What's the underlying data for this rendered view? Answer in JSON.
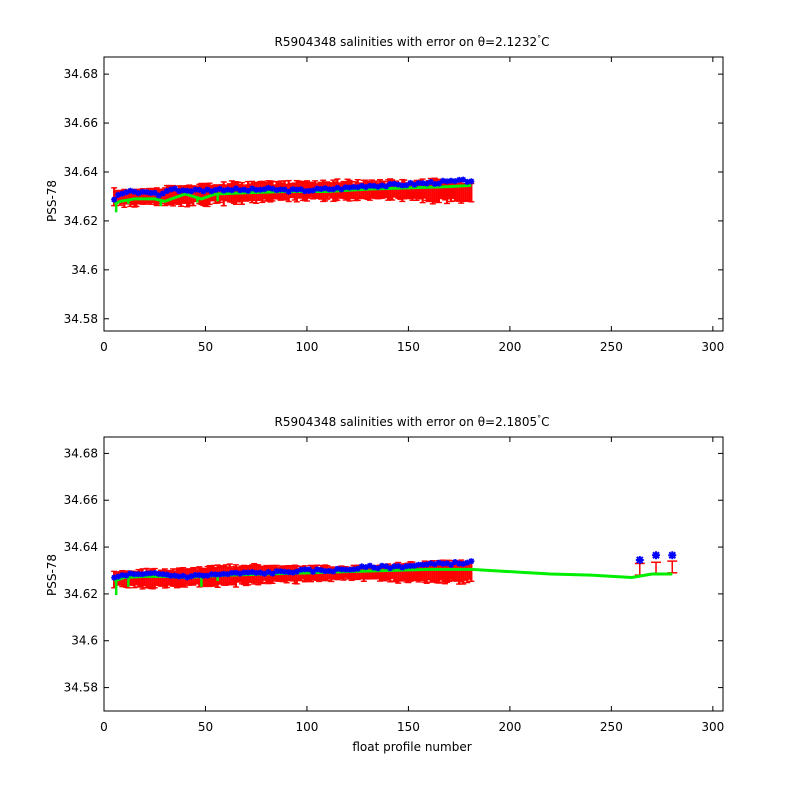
{
  "colors": {
    "error_bar": "#ff0000",
    "mapped": "#00ee00",
    "measured": "#0000ff"
  },
  "chart_data": [
    {
      "type": "line",
      "title_prefix": "R5904348 salinities with error on ",
      "title_theta": "θ=2.1232",
      "title_unit": "C",
      "ylabel": "PSS-78",
      "xlabel": "",
      "xlim": [
        0,
        305
      ],
      "ylim": [
        34.575,
        34.687
      ],
      "xticks": [
        "0",
        "50",
        "100",
        "150",
        "200",
        "250",
        "300"
      ],
      "yticks": [
        "34.58",
        "34.6",
        "34.62",
        "34.64",
        "34.66",
        "34.68"
      ],
      "series": [
        {
          "role": "error",
          "x": [
            5,
            20,
            40,
            60,
            80,
            100,
            120,
            140,
            160,
            181
          ],
          "y": [
            34.6295,
            34.6298,
            34.6305,
            34.6315,
            34.632,
            34.6325,
            34.6325,
            34.6328,
            34.6323,
            34.632
          ],
          "err": [
            0.003,
            0.003,
            0.0035,
            0.004,
            0.0035,
            0.0035,
            0.0035,
            0.0035,
            0.004,
            0.004
          ]
        },
        {
          "role": "mapped",
          "x": [
            5,
            8,
            15,
            25,
            30,
            40,
            48,
            55,
            70,
            90,
            110,
            130,
            150,
            170,
            181
          ],
          "y": [
            34.627,
            34.628,
            34.629,
            34.629,
            34.628,
            34.631,
            34.629,
            34.631,
            34.6315,
            34.632,
            34.632,
            34.633,
            34.6335,
            34.634,
            34.6345
          ],
          "spikes": [
            [
              6,
              34.6235
            ],
            [
              12,
              34.627
            ],
            [
              28,
              34.626
            ],
            [
              46,
              34.6275
            ],
            [
              56,
              34.628
            ]
          ]
        },
        {
          "role": "measured",
          "x": [
            5,
            8,
            12,
            18,
            22,
            28,
            32,
            40,
            50,
            60,
            70,
            80,
            90,
            100,
            110,
            120,
            130,
            140,
            150,
            160,
            170,
            181
          ],
          "y": [
            34.629,
            34.631,
            34.632,
            34.6315,
            34.632,
            34.6305,
            34.633,
            34.6325,
            34.6325,
            34.633,
            34.6325,
            34.633,
            34.6325,
            34.6325,
            34.633,
            34.6335,
            34.6345,
            34.6345,
            34.635,
            34.6355,
            34.636,
            34.6365
          ]
        }
      ]
    },
    {
      "type": "line",
      "title_prefix": "R5904348 salinities with error on ",
      "title_theta": "θ=2.1805",
      "title_unit": "C",
      "ylabel": "PSS-78",
      "xlabel": "float profile number",
      "xlim": [
        0,
        305
      ],
      "ylim": [
        34.57,
        34.687
      ],
      "xticks": [
        "0",
        "50",
        "100",
        "150",
        "200",
        "250",
        "300"
      ],
      "yticks": [
        "34.58",
        "34.6",
        "34.62",
        "34.64",
        "34.66",
        "34.68"
      ],
      "series": [
        {
          "role": "error",
          "x": [
            5,
            20,
            40,
            60,
            80,
            100,
            120,
            140,
            160,
            181
          ],
          "y": [
            34.6265,
            34.6265,
            34.627,
            34.628,
            34.6285,
            34.6285,
            34.629,
            34.629,
            34.6295,
            34.6295
          ],
          "err": [
            0.003,
            0.0035,
            0.0035,
            0.004,
            0.0035,
            0.003,
            0.0025,
            0.0035,
            0.004,
            0.004
          ]
        },
        {
          "role": "mapped",
          "x": [
            5,
            10,
            20,
            30,
            40,
            50,
            60,
            80,
            100,
            120,
            140,
            160,
            181,
            200,
            220,
            240,
            260,
            270,
            280
          ],
          "y": [
            34.6255,
            34.627,
            34.6275,
            34.6275,
            34.627,
            34.6275,
            34.628,
            34.6285,
            34.629,
            34.6295,
            34.63,
            34.6305,
            34.6305,
            34.6295,
            34.6285,
            34.628,
            34.627,
            34.6285,
            34.6285
          ],
          "spikes": [
            [
              6,
              34.6195
            ],
            [
              12,
              34.623
            ],
            [
              48,
              34.623
            ],
            [
              56,
              34.6255
            ]
          ]
        },
        {
          "role": "measured",
          "x": [
            5,
            8,
            12,
            18,
            22,
            28,
            32,
            40,
            50,
            60,
            70,
            80,
            90,
            100,
            110,
            120,
            130,
            140,
            150,
            160,
            170,
            181,
            264,
            272,
            280
          ],
          "y": [
            34.627,
            34.6275,
            34.6285,
            34.628,
            34.6285,
            34.6285,
            34.628,
            34.6275,
            34.628,
            34.6285,
            34.629,
            34.629,
            34.6295,
            34.63,
            34.63,
            34.6305,
            34.6315,
            34.6315,
            34.632,
            34.6325,
            34.633,
            34.6335,
            34.6345,
            34.6365,
            34.6365
          ]
        },
        {
          "role": "error_isolated",
          "x": [
            264,
            272,
            280
          ],
          "y": [
            34.6305,
            34.631,
            34.6315
          ],
          "err": [
            0.0025,
            0.0025,
            0.0025
          ]
        }
      ]
    }
  ]
}
